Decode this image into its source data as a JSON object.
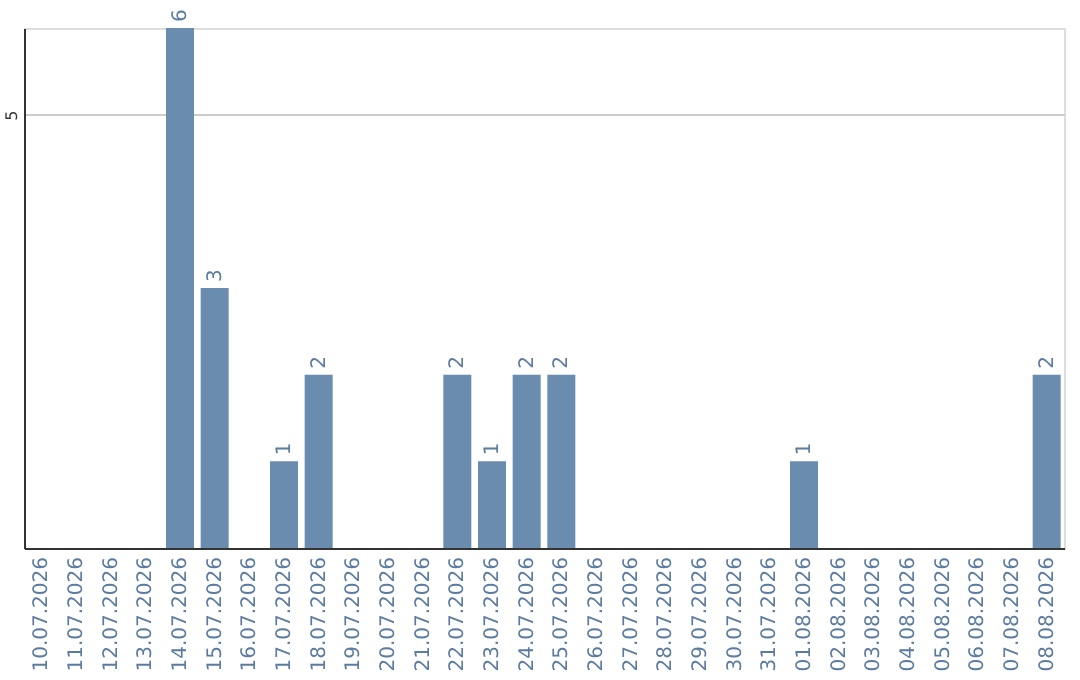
{
  "chart_data": {
    "type": "bar",
    "categories": [
      "10.07.2026",
      "11.07.2026",
      "12.07.2026",
      "13.07.2026",
      "14.07.2026",
      "15.07.2026",
      "16.07.2026",
      "17.07.2026",
      "18.07.2026",
      "19.07.2026",
      "20.07.2026",
      "21.07.2026",
      "22.07.2026",
      "23.07.2026",
      "24.07.2026",
      "25.07.2026",
      "26.07.2026",
      "27.07.2026",
      "28.07.2026",
      "29.07.2026",
      "30.07.2026",
      "31.07.2026",
      "01.08.2026",
      "02.08.2026",
      "03.08.2026",
      "04.08.2026",
      "05.08.2026",
      "06.08.2026",
      "07.08.2026",
      "08.08.2026"
    ],
    "values": [
      null,
      null,
      null,
      null,
      6,
      3,
      null,
      1,
      2,
      null,
      null,
      null,
      2,
      1,
      2,
      2,
      null,
      null,
      null,
      null,
      null,
      null,
      1,
      null,
      null,
      null,
      null,
      null,
      null,
      2
    ],
    "color": "#6a8caf",
    "ylim": [
      0,
      6
    ],
    "yticks": [
      5
    ],
    "grid": "y",
    "data_labels": true
  }
}
